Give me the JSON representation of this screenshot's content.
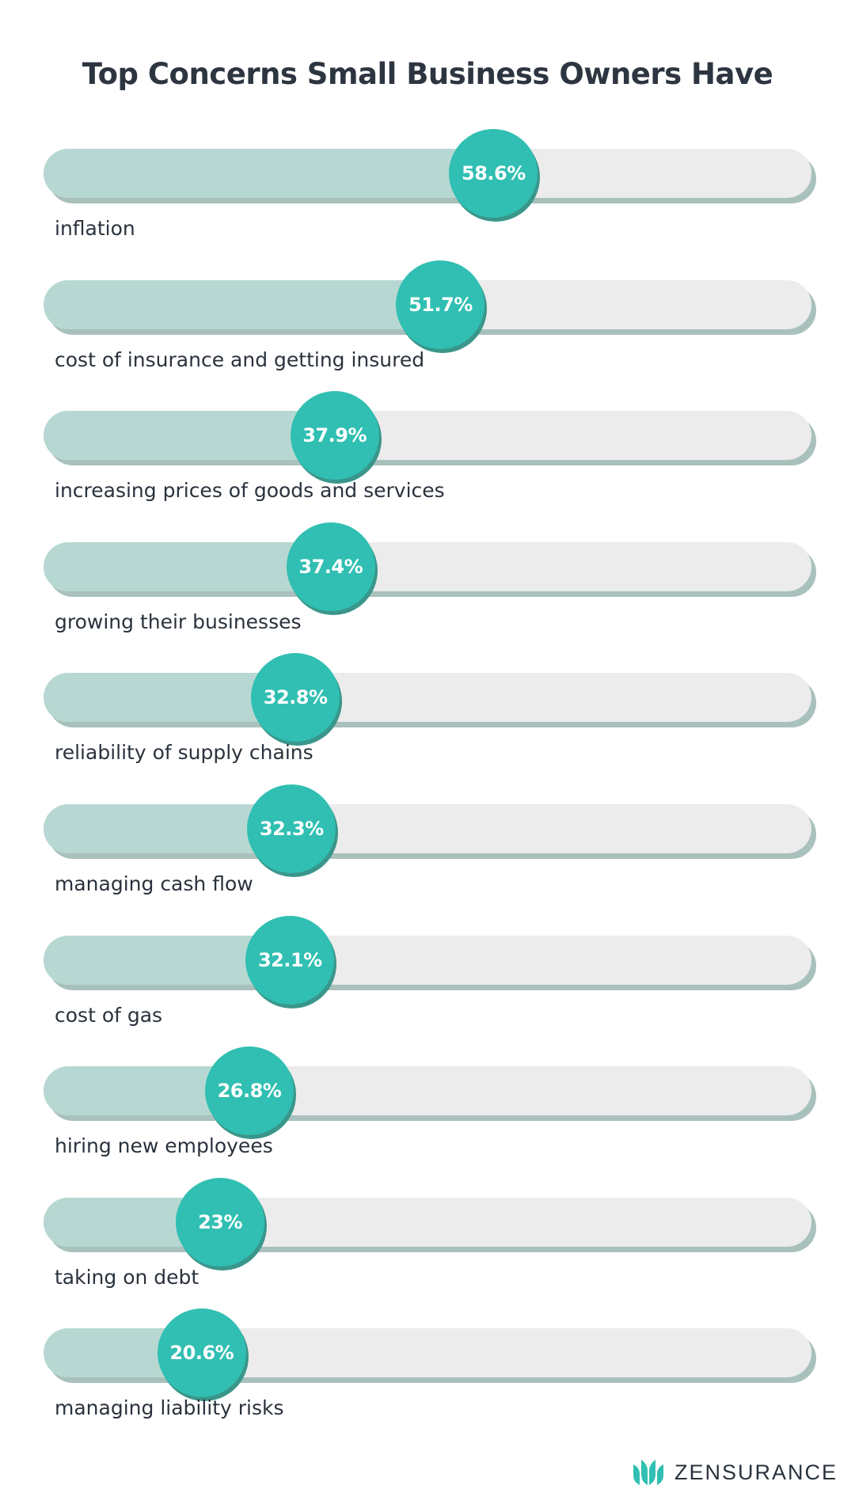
{
  "chart_data": {
    "type": "bar",
    "orientation": "horizontal",
    "title": "Top Concerns Small Business Owners Have",
    "categories": [
      "inflation",
      "cost of insurance and getting insured",
      "increasing prices of goods and services",
      "growing their businesses",
      "reliability of supply chains",
      "managing cash flow",
      "cost of gas",
      "hiring new employees",
      "taking on debt",
      "managing liability risks"
    ],
    "values": [
      58.6,
      51.7,
      37.9,
      37.4,
      32.8,
      32.3,
      32.1,
      26.8,
      23,
      20.6
    ],
    "value_labels": [
      "58.6%",
      "51.7%",
      "37.9%",
      "37.4%",
      "32.8%",
      "32.3%",
      "32.1%",
      "26.8%",
      "23%",
      "20.6%"
    ],
    "xlim": [
      0,
      100
    ],
    "colors": {
      "fill": "#b7d8d2",
      "track": "#ececec",
      "marker": "#30bfb2",
      "text": "#2a323d"
    }
  },
  "brand": {
    "name": "ZENSURANCE",
    "color": "#30bfb2"
  }
}
